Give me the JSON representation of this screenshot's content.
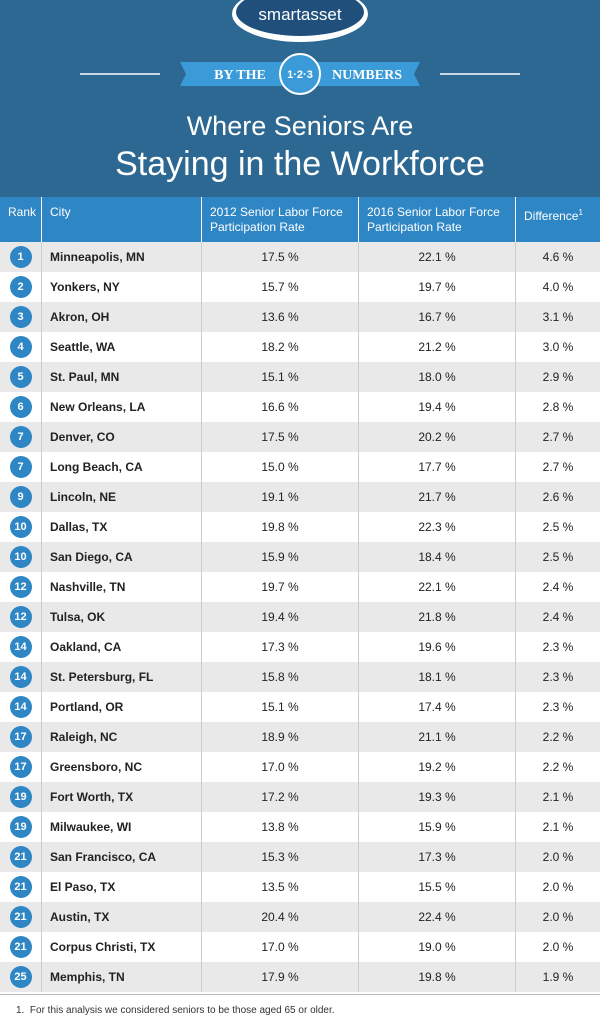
{
  "logo": "smartasset",
  "banner": {
    "left": "BY THE",
    "center": "1·2·3",
    "right": "NUMBERS"
  },
  "title": [
    "Where Seniors Are",
    "Staying in the Workforce"
  ],
  "table": {
    "columns": [
      "Rank",
      "City",
      "2012 Senior Labor Force Participation Rate",
      "2016 Senior Labor Force Participation Rate",
      "Difference"
    ],
    "column_note_mark": "1",
    "rows": [
      [
        "1",
        "Minneapolis, MN",
        "17.5 %",
        "22.1 %",
        "4.6 %"
      ],
      [
        "2",
        "Yonkers, NY",
        "15.7 %",
        "19.7 %",
        "4.0 %"
      ],
      [
        "3",
        "Akron, OH",
        "13.6 %",
        "16.7 %",
        "3.1 %"
      ],
      [
        "4",
        "Seattle, WA",
        "18.2 %",
        "21.2 %",
        "3.0 %"
      ],
      [
        "5",
        "St. Paul, MN",
        "15.1 %",
        "18.0 %",
        "2.9 %"
      ],
      [
        "6",
        "New Orleans, LA",
        "16.6 %",
        "19.4 %",
        "2.8 %"
      ],
      [
        "7",
        "Denver, CO",
        "17.5 %",
        "20.2 %",
        "2.7 %"
      ],
      [
        "7",
        "Long Beach, CA",
        "15.0 %",
        "17.7 %",
        "2.7 %"
      ],
      [
        "9",
        "Lincoln, NE",
        "19.1 %",
        "21.7 %",
        "2.6 %"
      ],
      [
        "10",
        "Dallas, TX",
        "19.8 %",
        "22.3 %",
        "2.5 %"
      ],
      [
        "10",
        "San Diego, CA",
        "15.9 %",
        "18.4 %",
        "2.5 %"
      ],
      [
        "12",
        "Nashville, TN",
        "19.7 %",
        "22.1 %",
        "2.4 %"
      ],
      [
        "12",
        "Tulsa, OK",
        "19.4 %",
        "21.8 %",
        "2.4 %"
      ],
      [
        "14",
        "Oakland, CA",
        "17.3 %",
        "19.6 %",
        "2.3 %"
      ],
      [
        "14",
        "St. Petersburg, FL",
        "15.8 %",
        "18.1 %",
        "2.3 %"
      ],
      [
        "14",
        "Portland, OR",
        "15.1 %",
        "17.4 %",
        "2.3 %"
      ],
      [
        "17",
        "Raleigh, NC",
        "18.9 %",
        "21.1 %",
        "2.2 %"
      ],
      [
        "17",
        "Greensboro, NC",
        "17.0 %",
        "19.2 %",
        "2.2 %"
      ],
      [
        "19",
        "Fort Worth, TX",
        "17.2 %",
        "19.3 %",
        "2.1 %"
      ],
      [
        "19",
        "Milwaukee, WI",
        "13.8 %",
        "15.9 %",
        "2.1 %"
      ],
      [
        "21",
        "San Francisco, CA",
        "15.3 %",
        "17.3 %",
        "2.0 %"
      ],
      [
        "21",
        "El Paso, TX",
        "13.5 %",
        "15.5 %",
        "2.0 %"
      ],
      [
        "21",
        "Austin, TX",
        "20.4 %",
        "22.4 %",
        "2.0 %"
      ],
      [
        "21",
        "Corpus Christi, TX",
        "17.0 %",
        "19.0 %",
        "2.0 %"
      ],
      [
        "25",
        "Memphis, TN",
        "17.9 %",
        "19.8 %",
        "1.9 %"
      ]
    ]
  },
  "footnote": {
    "mark": "1.",
    "text": "For this analysis we considered seniors to be those aged 65 or older."
  }
}
